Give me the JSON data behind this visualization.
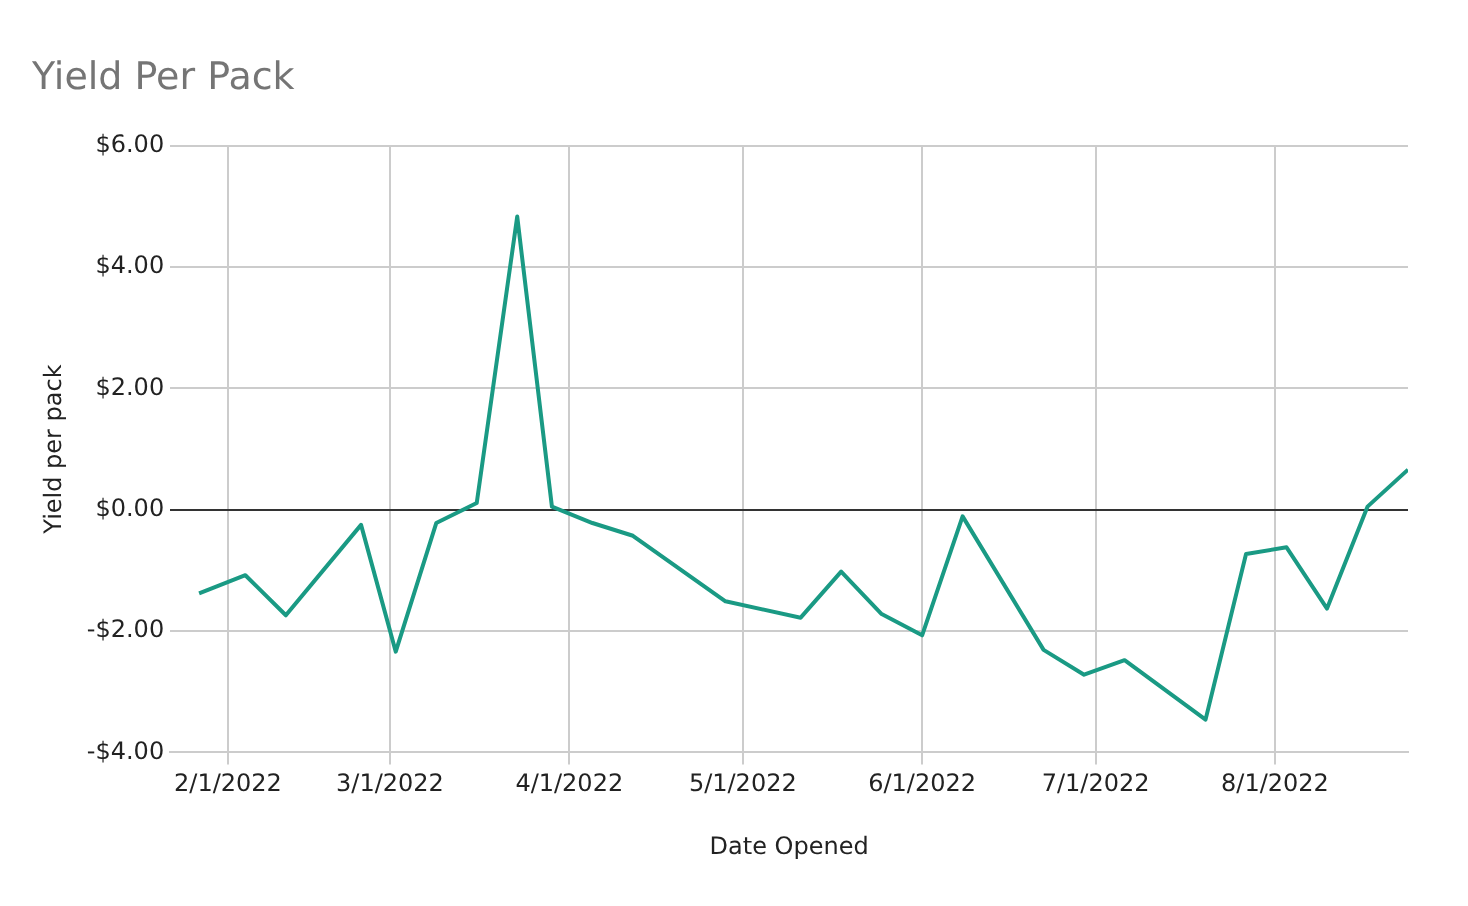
{
  "chart_data": {
    "type": "line",
    "title": "Yield Per Pack",
    "xlabel": "Date Opened",
    "ylabel": "Yield per pack",
    "x": [
      "2022-01-27",
      "2022-02-04",
      "2022-02-11",
      "2022-02-24",
      "2022-03-02",
      "2022-03-09",
      "2022-03-16",
      "2022-03-23",
      "2022-03-29",
      "2022-04-05",
      "2022-04-12",
      "2022-04-28",
      "2022-05-11",
      "2022-05-18",
      "2022-05-25",
      "2022-06-01",
      "2022-06-08",
      "2022-06-22",
      "2022-06-29",
      "2022-07-06",
      "2022-07-20",
      "2022-07-27",
      "2022-08-03",
      "2022-08-10",
      "2022-08-17",
      "2022-08-24"
    ],
    "series": [
      {
        "color": "#1a9a84",
        "values": [
          -1.38,
          -1.08,
          -1.74,
          -0.25,
          -2.34,
          -0.22,
          0.11,
          4.83,
          0.05,
          -0.22,
          -0.43,
          -1.51,
          -1.78,
          -1.02,
          -1.72,
          -2.07,
          -0.11,
          -2.31,
          -2.72,
          -2.48,
          -3.46,
          -0.73,
          -0.62,
          -1.63,
          0.05,
          0.66
        ]
      }
    ],
    "xlim": [
      "2022-01-22",
      "2022-08-24"
    ],
    "xticks": [
      {
        "value": "2022-02-01",
        "label": "2/1/2022"
      },
      {
        "value": "2022-03-01",
        "label": "3/1/2022"
      },
      {
        "value": "2022-04-01",
        "label": "4/1/2022"
      },
      {
        "value": "2022-05-01",
        "label": "5/1/2022"
      },
      {
        "value": "2022-06-01",
        "label": "6/1/2022"
      },
      {
        "value": "2022-07-01",
        "label": "7/1/2022"
      },
      {
        "value": "2022-08-01",
        "label": "8/1/2022"
      }
    ],
    "ylim": [
      -4,
      6
    ],
    "yticks": [
      {
        "value": -4,
        "label": "-$4.00"
      },
      {
        "value": -2,
        "label": "-$2.00"
      },
      {
        "value": 0,
        "label": "$0.00"
      },
      {
        "value": 2,
        "label": "$2.00"
      },
      {
        "value": 4,
        "label": "$4.00"
      },
      {
        "value": 6,
        "label": "$6.00"
      }
    ],
    "grid": true,
    "legend": false,
    "marker": "none",
    "line_style": "solid"
  }
}
